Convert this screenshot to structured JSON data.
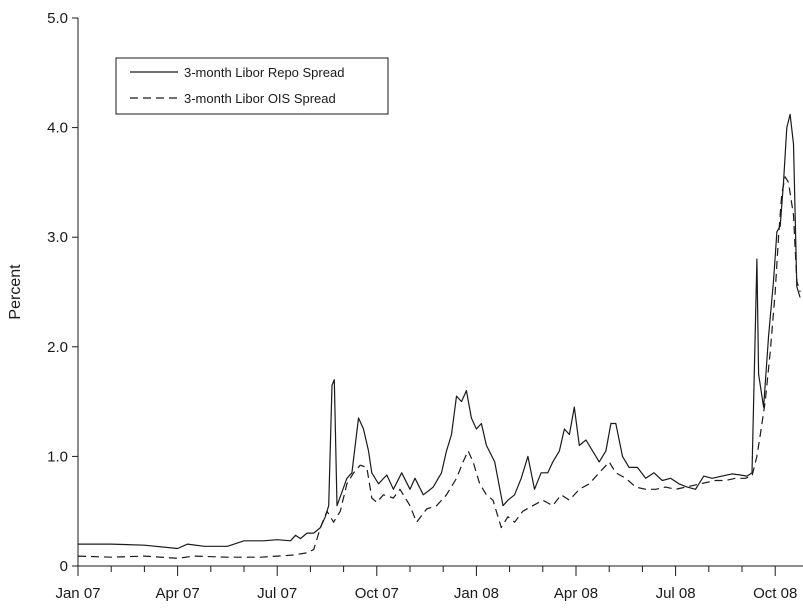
{
  "chart_data": {
    "type": "line",
    "title": "",
    "xlabel": "",
    "ylabel": "Percent",
    "ylim": [
      0,
      5
    ],
    "xlim": [
      0,
      21.75
    ],
    "y_ticks": [
      "0",
      "1.0",
      "2.0",
      "3.0",
      "4.0",
      "5.0"
    ],
    "x_ticks": [
      {
        "label": "Jan 07",
        "month": 0
      },
      {
        "label": "Apr 07",
        "month": 3
      },
      {
        "label": "Jul 07",
        "month": 6
      },
      {
        "label": "Oct 07",
        "month": 9
      },
      {
        "label": "Jan 08",
        "month": 12
      },
      {
        "label": "Apr 08",
        "month": 15
      },
      {
        "label": "Jul 08",
        "month": 18
      },
      {
        "label": "Oct 08",
        "month": 21
      }
    ],
    "x_unit": "months since Jan 07",
    "legend_position": "top-left",
    "grid": false,
    "series": [
      {
        "name": "3-month Libor Repo Spread",
        "style": "solid",
        "points": [
          [
            0,
            0.2
          ],
          [
            1,
            0.2
          ],
          [
            2,
            0.19
          ],
          [
            3,
            0.16
          ],
          [
            3.3,
            0.2
          ],
          [
            3.8,
            0.18
          ],
          [
            4.5,
            0.18
          ],
          [
            5,
            0.23
          ],
          [
            5.6,
            0.23
          ],
          [
            6,
            0.24
          ],
          [
            6.4,
            0.23
          ],
          [
            6.55,
            0.28
          ],
          [
            6.7,
            0.25
          ],
          [
            6.9,
            0.3
          ],
          [
            7.1,
            0.3
          ],
          [
            7.3,
            0.35
          ],
          [
            7.45,
            0.45
          ],
          [
            7.55,
            0.55
          ],
          [
            7.65,
            1.65
          ],
          [
            7.72,
            1.7
          ],
          [
            7.8,
            0.55
          ],
          [
            8.1,
            0.8
          ],
          [
            8.25,
            0.85
          ],
          [
            8.45,
            1.35
          ],
          [
            8.6,
            1.25
          ],
          [
            8.75,
            1.05
          ],
          [
            8.85,
            0.85
          ],
          [
            9.05,
            0.75
          ],
          [
            9.3,
            0.83
          ],
          [
            9.5,
            0.7
          ],
          [
            9.75,
            0.85
          ],
          [
            10.0,
            0.7
          ],
          [
            10.15,
            0.8
          ],
          [
            10.4,
            0.65
          ],
          [
            10.7,
            0.72
          ],
          [
            10.95,
            0.85
          ],
          [
            11.1,
            1.05
          ],
          [
            11.25,
            1.2
          ],
          [
            11.4,
            1.55
          ],
          [
            11.55,
            1.5
          ],
          [
            11.7,
            1.6
          ],
          [
            11.85,
            1.35
          ],
          [
            12.0,
            1.25
          ],
          [
            12.15,
            1.3
          ],
          [
            12.3,
            1.1
          ],
          [
            12.55,
            0.95
          ],
          [
            12.8,
            0.55
          ],
          [
            12.95,
            0.6
          ],
          [
            13.15,
            0.65
          ],
          [
            13.35,
            0.8
          ],
          [
            13.55,
            1.0
          ],
          [
            13.75,
            0.7
          ],
          [
            13.95,
            0.85
          ],
          [
            14.15,
            0.85
          ],
          [
            14.3,
            0.95
          ],
          [
            14.5,
            1.05
          ],
          [
            14.65,
            1.25
          ],
          [
            14.8,
            1.2
          ],
          [
            14.95,
            1.45
          ],
          [
            15.1,
            1.1
          ],
          [
            15.3,
            1.15
          ],
          [
            15.5,
            1.05
          ],
          [
            15.7,
            0.95
          ],
          [
            15.9,
            1.05
          ],
          [
            16.05,
            1.3
          ],
          [
            16.2,
            1.3
          ],
          [
            16.4,
            1.0
          ],
          [
            16.6,
            0.9
          ],
          [
            16.85,
            0.9
          ],
          [
            17.1,
            0.8
          ],
          [
            17.35,
            0.85
          ],
          [
            17.6,
            0.78
          ],
          [
            17.85,
            0.8
          ],
          [
            18.1,
            0.75
          ],
          [
            18.35,
            0.72
          ],
          [
            18.6,
            0.7
          ],
          [
            18.85,
            0.82
          ],
          [
            19.1,
            0.8
          ],
          [
            19.4,
            0.82
          ],
          [
            19.7,
            0.84
          ],
          [
            19.95,
            0.83
          ],
          [
            20.15,
            0.82
          ],
          [
            20.3,
            0.85
          ],
          [
            20.45,
            2.8
          ],
          [
            20.5,
            1.75
          ],
          [
            20.65,
            1.45
          ],
          [
            20.8,
            2.1
          ],
          [
            20.95,
            2.6
          ],
          [
            21.05,
            3.05
          ],
          [
            21.15,
            3.1
          ],
          [
            21.25,
            3.5
          ],
          [
            21.35,
            4.0
          ],
          [
            21.45,
            4.12
          ],
          [
            21.55,
            3.85
          ],
          [
            21.65,
            2.55
          ],
          [
            21.75,
            2.45
          ]
        ]
      },
      {
        "name": "3-month Libor OIS Spread",
        "style": "dashed",
        "points": [
          [
            0,
            0.09
          ],
          [
            1,
            0.08
          ],
          [
            2,
            0.09
          ],
          [
            3,
            0.07
          ],
          [
            3.5,
            0.09
          ],
          [
            4.5,
            0.08
          ],
          [
            5.5,
            0.08
          ],
          [
            6,
            0.09
          ],
          [
            6.5,
            0.1
          ],
          [
            6.9,
            0.12
          ],
          [
            7.1,
            0.15
          ],
          [
            7.3,
            0.35
          ],
          [
            7.5,
            0.5
          ],
          [
            7.7,
            0.4
          ],
          [
            7.9,
            0.5
          ],
          [
            8.1,
            0.75
          ],
          [
            8.3,
            0.85
          ],
          [
            8.5,
            0.92
          ],
          [
            8.7,
            0.9
          ],
          [
            8.85,
            0.62
          ],
          [
            9.0,
            0.58
          ],
          [
            9.2,
            0.65
          ],
          [
            9.5,
            0.62
          ],
          [
            9.7,
            0.7
          ],
          [
            10.0,
            0.55
          ],
          [
            10.2,
            0.4
          ],
          [
            10.5,
            0.52
          ],
          [
            10.8,
            0.55
          ],
          [
            11.1,
            0.65
          ],
          [
            11.4,
            0.8
          ],
          [
            11.6,
            0.95
          ],
          [
            11.75,
            1.05
          ],
          [
            11.9,
            0.95
          ],
          [
            12.1,
            0.75
          ],
          [
            12.3,
            0.65
          ],
          [
            12.5,
            0.6
          ],
          [
            12.75,
            0.35
          ],
          [
            12.95,
            0.45
          ],
          [
            13.15,
            0.4
          ],
          [
            13.4,
            0.5
          ],
          [
            13.7,
            0.55
          ],
          [
            14.0,
            0.6
          ],
          [
            14.3,
            0.55
          ],
          [
            14.55,
            0.65
          ],
          [
            14.8,
            0.6
          ],
          [
            15.1,
            0.7
          ],
          [
            15.4,
            0.75
          ],
          [
            15.7,
            0.85
          ],
          [
            16.0,
            0.95
          ],
          [
            16.2,
            0.85
          ],
          [
            16.5,
            0.8
          ],
          [
            16.8,
            0.72
          ],
          [
            17.1,
            0.7
          ],
          [
            17.4,
            0.7
          ],
          [
            17.7,
            0.72
          ],
          [
            18.0,
            0.7
          ],
          [
            18.3,
            0.72
          ],
          [
            18.6,
            0.74
          ],
          [
            18.9,
            0.76
          ],
          [
            19.2,
            0.78
          ],
          [
            19.5,
            0.78
          ],
          [
            19.8,
            0.8
          ],
          [
            20.1,
            0.8
          ],
          [
            20.3,
            0.82
          ],
          [
            20.45,
            1.0
          ],
          [
            20.55,
            1.2
          ],
          [
            20.7,
            1.5
          ],
          [
            20.85,
            1.95
          ],
          [
            21.0,
            2.5
          ],
          [
            21.1,
            3.0
          ],
          [
            21.2,
            3.4
          ],
          [
            21.3,
            3.55
          ],
          [
            21.4,
            3.5
          ],
          [
            21.55,
            3.2
          ],
          [
            21.65,
            2.6
          ],
          [
            21.75,
            2.5
          ]
        ]
      }
    ]
  }
}
